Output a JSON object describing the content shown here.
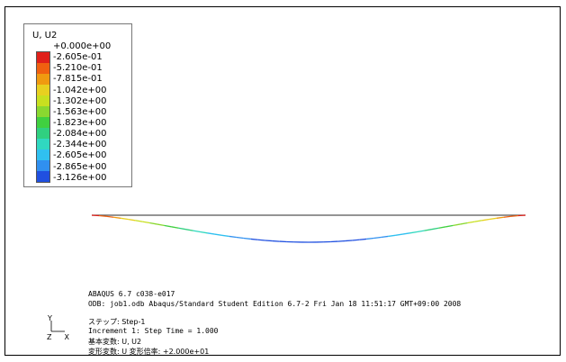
{
  "legend": {
    "title": "U, U2",
    "labels": [
      "+0.000e+00",
      "-2.605e-01",
      "-5.210e-01",
      "-7.815e-01",
      "-1.042e+00",
      "-1.302e+00",
      "-1.563e+00",
      "-1.823e+00",
      "-2.084e+00",
      "-2.344e+00",
      "-2.605e+00",
      "-2.865e+00",
      "-3.126e+00"
    ],
    "colors": [
      "#e0201a",
      "#f06010",
      "#f09a10",
      "#e8d020",
      "#c8e020",
      "#8ad830",
      "#40d040",
      "#30d080",
      "#30d8c0",
      "#30c0f0",
      "#3090f0",
      "#2050e0",
      "#1010d0"
    ]
  },
  "info": {
    "version": "ABAQUS 6.7 c038-e017",
    "odb": "ODB: job1.odb   Abaqus/Standard Student Edition 6.7-2   Fri Jan 18 11:51:17 GMT+09:00 2008",
    "step": "ステップ: Step-1",
    "increment": "Increment    1: Step Time =    1.000",
    "primary_var": "基本変数: U, U2",
    "deformed_var": "変形変数: U   変形倍率: +2.000e+01"
  },
  "triad": {
    "y_label": "Y",
    "z_label": "Z",
    "x_label": "X"
  },
  "colors": {
    "undeformed_line": "#555555"
  }
}
